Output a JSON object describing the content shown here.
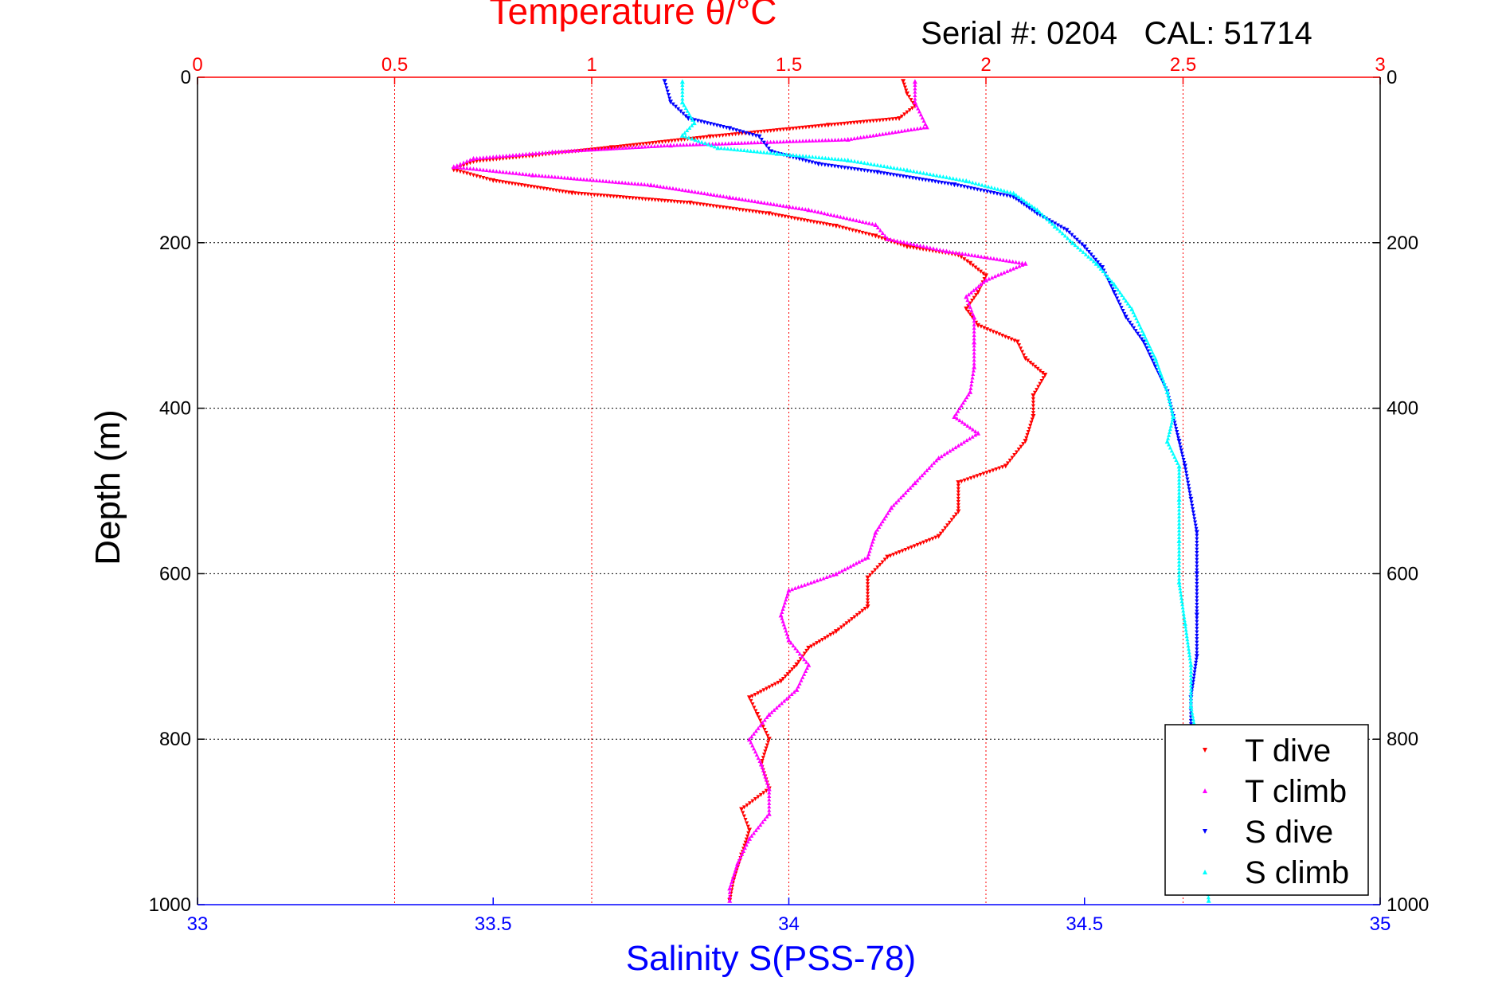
{
  "chart_data": {
    "type": "scatter",
    "title": "Temperature θ/°C",
    "subtitle": "Serial #: 0204   CAL: 51714",
    "top_axis": {
      "label": "Temperature θ/°C",
      "range": [
        0,
        3
      ],
      "ticks": [
        "0",
        "0.5",
        "1",
        "1.5",
        "2",
        "2.5",
        "3"
      ],
      "color": "#ff0000"
    },
    "bottom_axis": {
      "label": "Salinity S(PSS-78)",
      "range": [
        33,
        35
      ],
      "ticks": [
        "33",
        "33.5",
        "34",
        "34.5",
        "35"
      ],
      "color": "#0000ff"
    },
    "y_axis": {
      "label": "Depth (m)",
      "range": [
        0,
        1000
      ],
      "reversed": true,
      "ticks": [
        "0",
        "200",
        "400",
        "600",
        "800",
        "1000"
      ]
    },
    "grid": true,
    "legend_position": "bottom-right",
    "series": [
      {
        "name": "T dive",
        "axis": "temperature",
        "color": "#ff0000",
        "marker": "triangle-down",
        "points": [
          [
            1.79,
            5
          ],
          [
            1.8,
            20
          ],
          [
            1.82,
            35
          ],
          [
            1.78,
            50
          ],
          [
            1.6,
            58
          ],
          [
            1.3,
            72
          ],
          [
            1.05,
            85
          ],
          [
            0.85,
            95
          ],
          [
            0.7,
            102
          ],
          [
            0.65,
            112
          ],
          [
            0.75,
            125
          ],
          [
            0.95,
            140
          ],
          [
            1.25,
            152
          ],
          [
            1.45,
            165
          ],
          [
            1.62,
            180
          ],
          [
            1.72,
            192
          ],
          [
            1.8,
            205
          ],
          [
            1.93,
            215
          ],
          [
            1.96,
            225
          ],
          [
            2.0,
            240
          ],
          [
            1.98,
            260
          ],
          [
            1.95,
            280
          ],
          [
            1.98,
            300
          ],
          [
            2.08,
            320
          ],
          [
            2.1,
            340
          ],
          [
            2.15,
            360
          ],
          [
            2.12,
            385
          ],
          [
            2.12,
            410
          ],
          [
            2.1,
            440
          ],
          [
            2.05,
            470
          ],
          [
            1.93,
            490
          ],
          [
            1.93,
            525
          ],
          [
            1.88,
            555
          ],
          [
            1.75,
            580
          ],
          [
            1.7,
            605
          ],
          [
            1.7,
            640
          ],
          [
            1.62,
            670
          ],
          [
            1.55,
            690
          ],
          [
            1.52,
            710
          ],
          [
            1.48,
            730
          ],
          [
            1.4,
            750
          ],
          [
            1.42,
            770
          ],
          [
            1.45,
            800
          ],
          [
            1.43,
            830
          ],
          [
            1.45,
            860
          ],
          [
            1.38,
            885
          ],
          [
            1.4,
            910
          ],
          [
            1.38,
            940
          ],
          [
            1.36,
            970
          ],
          [
            1.35,
            995
          ]
        ]
      },
      {
        "name": "T climb",
        "axis": "temperature",
        "color": "#ff00ff",
        "marker": "triangle-up",
        "points": [
          [
            1.82,
            5
          ],
          [
            1.82,
            30
          ],
          [
            1.85,
            60
          ],
          [
            1.65,
            75
          ],
          [
            1.2,
            82
          ],
          [
            0.9,
            90
          ],
          [
            0.7,
            98
          ],
          [
            0.65,
            108
          ],
          [
            0.85,
            118
          ],
          [
            1.15,
            130
          ],
          [
            1.35,
            145
          ],
          [
            1.55,
            160
          ],
          [
            1.72,
            178
          ],
          [
            1.75,
            195
          ],
          [
            1.9,
            210
          ],
          [
            2.1,
            225
          ],
          [
            2.0,
            245
          ],
          [
            1.95,
            265
          ],
          [
            1.97,
            290
          ],
          [
            1.97,
            320
          ],
          [
            1.97,
            350
          ],
          [
            1.96,
            380
          ],
          [
            1.92,
            410
          ],
          [
            1.98,
            430
          ],
          [
            1.88,
            460
          ],
          [
            1.82,
            490
          ],
          [
            1.76,
            520
          ],
          [
            1.72,
            550
          ],
          [
            1.7,
            580
          ],
          [
            1.62,
            600
          ],
          [
            1.5,
            620
          ],
          [
            1.48,
            650
          ],
          [
            1.5,
            680
          ],
          [
            1.55,
            710
          ],
          [
            1.52,
            740
          ],
          [
            1.45,
            770
          ],
          [
            1.4,
            800
          ],
          [
            1.43,
            830
          ],
          [
            1.45,
            860
          ],
          [
            1.45,
            890
          ],
          [
            1.4,
            920
          ],
          [
            1.37,
            950
          ],
          [
            1.35,
            980
          ],
          [
            1.35,
            995
          ]
        ]
      },
      {
        "name": "S dive",
        "axis": "salinity",
        "color": "#0000ff",
        "marker": "triangle-down",
        "points": [
          [
            33.79,
            5
          ],
          [
            33.8,
            30
          ],
          [
            33.83,
            50
          ],
          [
            33.9,
            62
          ],
          [
            33.95,
            72
          ],
          [
            33.97,
            90
          ],
          [
            34.05,
            105
          ],
          [
            34.15,
            115
          ],
          [
            34.28,
            130
          ],
          [
            34.38,
            145
          ],
          [
            34.42,
            165
          ],
          [
            34.47,
            185
          ],
          [
            34.5,
            205
          ],
          [
            34.53,
            230
          ],
          [
            34.55,
            260
          ],
          [
            34.57,
            290
          ],
          [
            34.6,
            320
          ],
          [
            34.62,
            350
          ],
          [
            34.64,
            380
          ],
          [
            34.65,
            410
          ],
          [
            34.66,
            440
          ],
          [
            34.67,
            470
          ],
          [
            34.68,
            510
          ],
          [
            34.69,
            550
          ],
          [
            34.69,
            600
          ],
          [
            34.69,
            650
          ],
          [
            34.69,
            700
          ],
          [
            34.68,
            750
          ],
          [
            34.68,
            790
          ]
        ]
      },
      {
        "name": "S climb",
        "axis": "salinity",
        "color": "#00ffff",
        "marker": "triangle-up",
        "points": [
          [
            33.82,
            5
          ],
          [
            33.82,
            30
          ],
          [
            33.84,
            55
          ],
          [
            33.82,
            70
          ],
          [
            33.88,
            85
          ],
          [
            33.98,
            92
          ],
          [
            34.1,
            100
          ],
          [
            34.2,
            112
          ],
          [
            34.3,
            125
          ],
          [
            34.38,
            140
          ],
          [
            34.42,
            160
          ],
          [
            34.45,
            180
          ],
          [
            34.48,
            200
          ],
          [
            34.52,
            225
          ],
          [
            34.55,
            250
          ],
          [
            34.58,
            280
          ],
          [
            34.6,
            310
          ],
          [
            34.62,
            340
          ],
          [
            34.64,
            380
          ],
          [
            34.65,
            410
          ],
          [
            34.64,
            440
          ],
          [
            34.66,
            470
          ],
          [
            34.66,
            510
          ],
          [
            34.66,
            560
          ],
          [
            34.66,
            610
          ],
          [
            34.67,
            660
          ],
          [
            34.68,
            710
          ],
          [
            34.68,
            760
          ],
          [
            34.69,
            800
          ],
          [
            34.7,
            850
          ],
          [
            34.7,
            900
          ],
          [
            34.71,
            995
          ]
        ]
      }
    ]
  }
}
